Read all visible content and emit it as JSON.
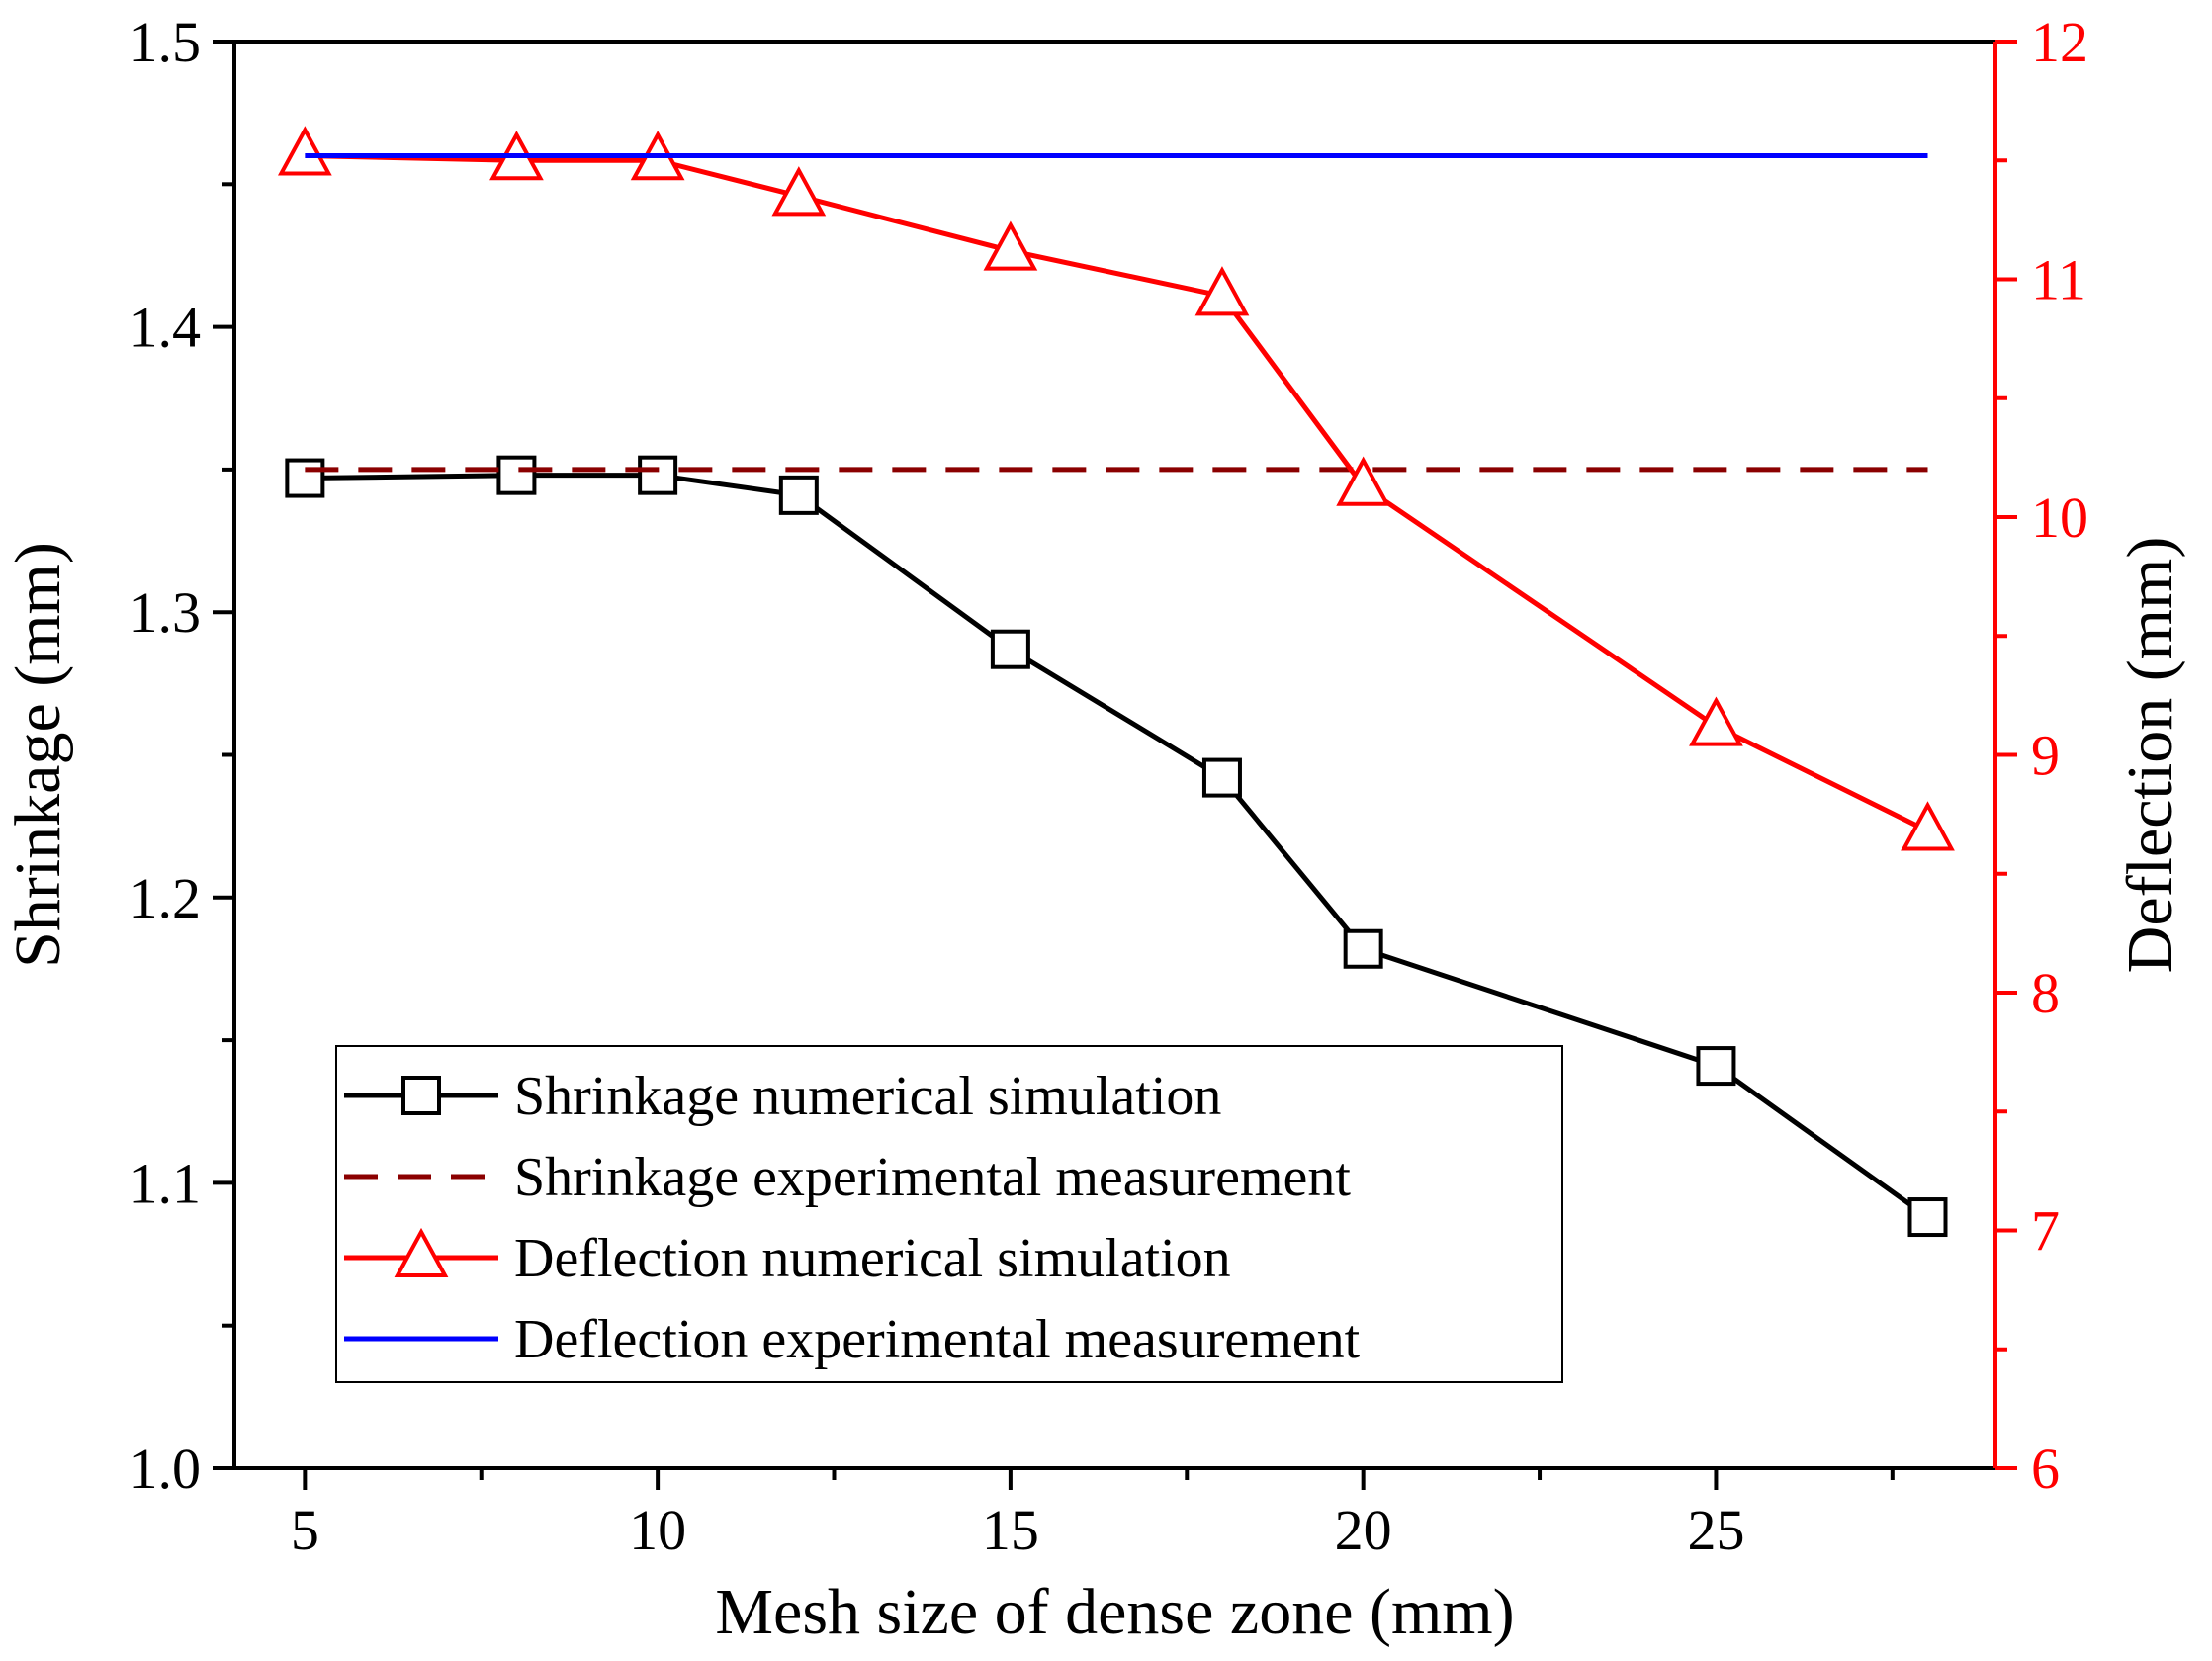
{
  "chart_data": {
    "type": "line",
    "title": "",
    "xlabel": "Mesh size of dense zone (mm)",
    "ylabel": "Shrinkage (mm)",
    "y2label": "Deflection (mm)",
    "xlim": [
      4,
      28.96
    ],
    "ylim": [
      1.0,
      1.5
    ],
    "y2lim": [
      6,
      12
    ],
    "xticks": [
      5,
      10,
      15,
      20,
      25
    ],
    "yticks": [
      1.0,
      1.1,
      1.2,
      1.3,
      1.4,
      1.5
    ],
    "y2ticks": [
      6,
      7,
      8,
      9,
      10,
      11,
      12
    ],
    "grid": false,
    "legend_position": "bottom-left",
    "x": [
      5,
      8,
      10,
      12,
      15,
      18,
      20,
      25,
      28
    ],
    "series": [
      {
        "name": "Shrinkage numerical simulation",
        "axis": "left",
        "color": "#000000",
        "marker": "square",
        "values": [
          1.347,
          1.348,
          1.348,
          1.341,
          1.287,
          1.242,
          1.182,
          1.141,
          1.088
        ]
      },
      {
        "name": "Shrinkage experimental measurement",
        "axis": "left",
        "color": "#8b0000",
        "style": "dashed",
        "x": [
          5,
          28
        ],
        "values": [
          1.35,
          1.35
        ]
      },
      {
        "name": "Deflection numerical simulation",
        "axis": "right",
        "color": "#ff0000",
        "marker": "triangle",
        "values": [
          11.52,
          11.5,
          11.5,
          11.35,
          11.12,
          10.93,
          10.13,
          9.12,
          8.68
        ]
      },
      {
        "name": "Deflection experimental measurement",
        "axis": "right",
        "color": "#0000ff",
        "style": "solid",
        "x": [
          5,
          28
        ],
        "values": [
          11.52,
          11.52
        ]
      }
    ]
  }
}
